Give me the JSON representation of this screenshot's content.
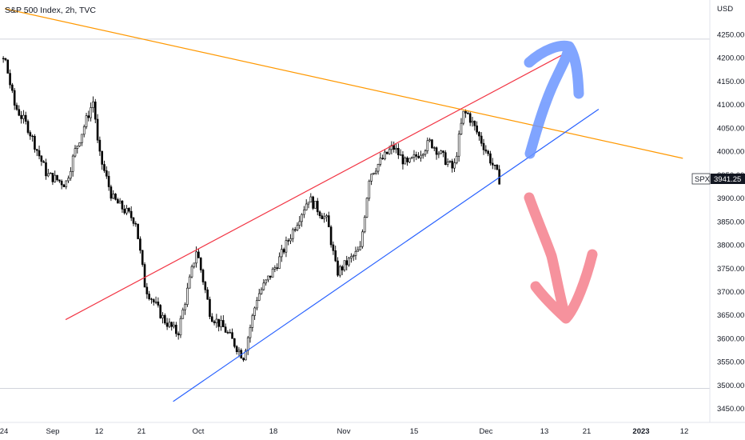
{
  "chart_data": {
    "type": "candlestick",
    "title": "S&P 500 Index, 2h, TVC",
    "currency_label": "USD",
    "symbol": "SPX",
    "last_price": "3941.25",
    "ylim": [
      3420,
      4310
    ],
    "y_ticks": [
      3450,
      3500,
      3550,
      3600,
      3650,
      3700,
      3750,
      3800,
      3850,
      3900,
      3950,
      4000,
      4050,
      4100,
      4150,
      4200,
      4250
    ],
    "y_tick_labels": [
      "3450.00",
      "3500.00",
      "3550.00",
      "3600.00",
      "3650.00",
      "3700.00",
      "3750.00",
      "3800.00",
      "3850.00",
      "3900.00",
      "3950.00",
      "4000.00",
      "4050.00",
      "4100.00",
      "4150.00",
      "4200.00",
      "4250.00"
    ],
    "x_tick_labels": [
      "24",
      "Sep",
      "12",
      "21",
      "Oct",
      "18",
      "Nov",
      "15",
      "Dec",
      "13",
      "21",
      "2023",
      "12"
    ],
    "x_range": [
      "2022-08-24",
      "2023-01-12"
    ],
    "horizontal_levels": [
      4240,
      3493
    ],
    "price_path_x": [
      "2022-08-16",
      "2022-08-19",
      "2022-08-24",
      "2022-08-26",
      "2022-08-29",
      "2022-09-02",
      "2022-09-06",
      "2022-09-08",
      "2022-09-12",
      "2022-09-13",
      "2022-09-16",
      "2022-09-21",
      "2022-09-23",
      "2022-09-27",
      "2022-09-30",
      "2022-10-04",
      "2022-10-07",
      "2022-10-10",
      "2022-10-13",
      "2022-10-14",
      "2022-10-17",
      "2022-10-21",
      "2022-10-26",
      "2022-10-28",
      "2022-11-01",
      "2022-11-03",
      "2022-11-08",
      "2022-11-10",
      "2022-11-15",
      "2022-11-18",
      "2022-11-23",
      "2022-11-28",
      "2022-11-30",
      "2022-12-01",
      "2022-12-05",
      "2022-12-08"
    ],
    "price_path_y": [
      4160,
      4140,
      4200,
      4100,
      4050,
      3950,
      3930,
      4000,
      4110,
      4000,
      3900,
      3850,
      3710,
      3640,
      3610,
      3790,
      3650,
      3620,
      3575,
      3560,
      3690,
      3755,
      3860,
      3900,
      3850,
      3740,
      3790,
      3950,
      4010,
      3970,
      4020,
      3960,
      4080,
      4080,
      4000,
      3935
    ],
    "trendlines": [
      {
        "color": "#ff9800",
        "x": [
          "2022-08-24",
          "2023-01-16"
        ],
        "y": [
          4305,
          3985
        ]
      },
      {
        "color": "#f23645",
        "x": [
          "2022-09-06",
          "2022-12-21"
        ],
        "y": [
          3640,
          4205
        ]
      },
      {
        "color": "#2962ff",
        "x": [
          "2022-09-29",
          "2022-12-29"
        ],
        "y": [
          3465,
          4090
        ]
      }
    ],
    "arrows": [
      {
        "color": "#6b95ff",
        "direction": "up"
      },
      {
        "color": "#f47f8c",
        "direction": "down"
      }
    ]
  }
}
